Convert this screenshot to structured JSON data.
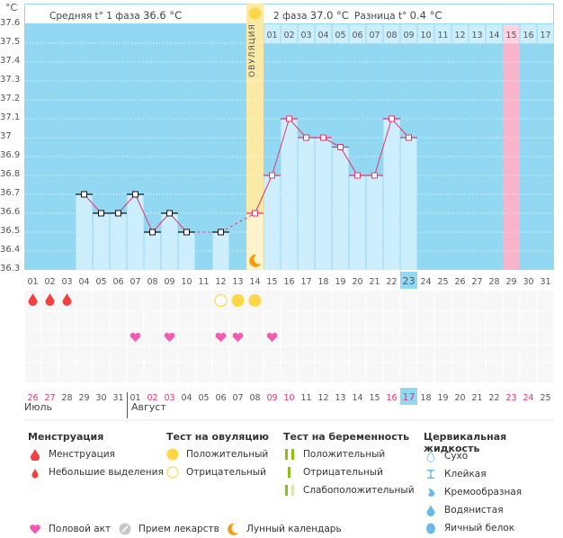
{
  "header": {
    "phase1_label": "Средняя t° 1 фаза",
    "phase1_value": "36.6 °C",
    "phase2_label": "2 фаза",
    "phase2_value": "37.0 °C",
    "diff_label": "Разница t°",
    "diff_value": "0.4 °C",
    "ovulation_label": "ОВУЛЯЦИЯ"
  },
  "chart_data": {
    "type": "bar",
    "title": "",
    "ylabel": "°C",
    "ylim": [
      36.3,
      37.6
    ],
    "yticks": [
      "37.6",
      "37.5",
      "37.4",
      "37.3",
      "37.2",
      "37.1",
      "37",
      "36.9",
      "36.8",
      "36.7",
      "36.6",
      "36.5",
      "36.4",
      "36.3"
    ],
    "grid": true,
    "categories": [
      "01",
      "02",
      "03",
      "04",
      "05",
      "06",
      "07",
      "08",
      "09",
      "10",
      "11",
      "12",
      "13",
      "14",
      "15",
      "16",
      "17",
      "18",
      "19",
      "20",
      "21",
      "22",
      "23",
      "24",
      "25",
      "26",
      "27",
      "28",
      "29",
      "30",
      "31"
    ],
    "series": [
      {
        "name": "Базальная температура",
        "values": [
          null,
          null,
          null,
          36.7,
          36.6,
          36.6,
          36.7,
          36.5,
          36.6,
          36.5,
          null,
          36.5,
          null,
          36.6,
          36.8,
          37.1,
          37.0,
          37.0,
          36.95,
          36.8,
          36.8,
          37.1,
          37.0,
          null,
          null,
          null,
          null,
          null,
          null,
          null,
          null
        ]
      }
    ],
    "ovulation_day": 14,
    "current_day": 23,
    "expected_period_day": 29,
    "phase2_day_labels": [
      "01",
      "02",
      "03",
      "04",
      "05",
      "06",
      "07",
      "08",
      "09",
      "10",
      "11",
      "12",
      "13",
      "14",
      "15",
      "16",
      "17"
    ],
    "phase2_highlight_label": "15",
    "calendar_dates": [
      "26",
      "27",
      "28",
      "29",
      "30",
      "31",
      "01",
      "02",
      "03",
      "04",
      "05",
      "06",
      "07",
      "08",
      "09",
      "10",
      "11",
      "12",
      "13",
      "14",
      "15",
      "16",
      "17",
      "18",
      "19",
      "20",
      "21",
      "22",
      "23",
      "24",
      "25"
    ],
    "weekend_dates_idx": [
      0,
      1,
      7,
      8,
      14,
      15,
      21,
      22,
      28,
      29
    ],
    "today_date_idx": 22,
    "months": [
      {
        "label": "Июль",
        "start_idx": 0
      },
      {
        "label": "Август",
        "start_idx": 6
      }
    ],
    "menstruation_days": [
      1,
      2,
      3
    ],
    "ovulation_test_negative_days": [
      12
    ],
    "ovulation_test_positive_days": [
      13,
      14
    ],
    "intercourse_days": [
      7,
      9,
      12,
      13,
      15
    ],
    "moon_day": 14
  },
  "legend": {
    "menstruation": {
      "title": "Менструация",
      "items": [
        "Менструация",
        "Небольшие выделения"
      ]
    },
    "ovulation_test": {
      "title": "Тест на овуляцию",
      "items": [
        "Положительный",
        "Отрицательный"
      ]
    },
    "pregnancy_test": {
      "title": "Тест на беременность",
      "items": [
        "Положительный",
        "Отрицательный",
        "Слабоположительный"
      ]
    },
    "cervical": {
      "title": "Цервикальная жидкость",
      "items": [
        "Сухо",
        "Клейкая",
        "Кремообразная",
        "Водянистая",
        "Яичный белок"
      ]
    },
    "bottom": [
      "Половой акт",
      "Прием лекарств",
      "Лунный календарь"
    ]
  },
  "colors": {
    "chart_bg": "#92d8f3",
    "bar": "#cdeefc",
    "line": "#e8336c",
    "ovulation": "#fbeaa6",
    "period": "#f9b4cb",
    "today": "#92d8f3",
    "sun": "#fdd745",
    "heart": "#f45aae",
    "drop": "#f24040",
    "weekend": "#e8336c"
  }
}
